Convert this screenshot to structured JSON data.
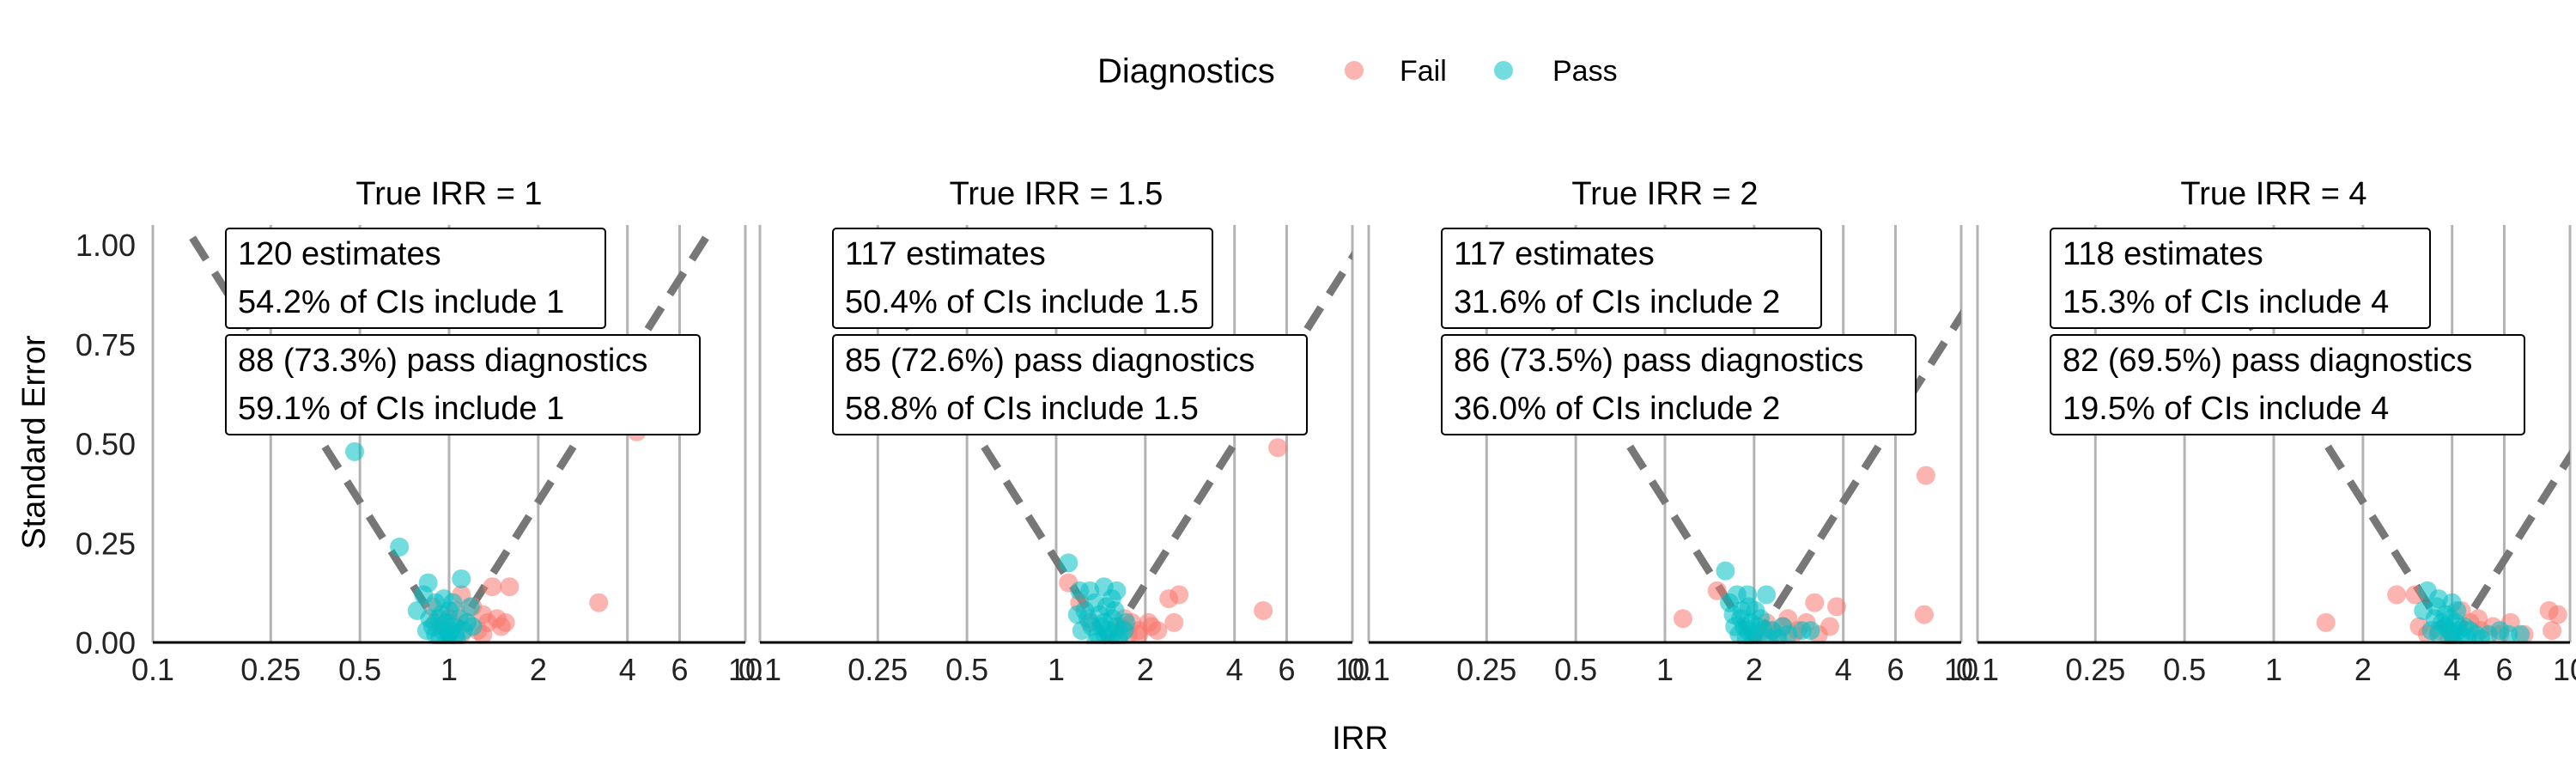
{
  "legend": {
    "title": "Diagnostics",
    "items": [
      {
        "label": "Fail",
        "color": "#F8766D"
      },
      {
        "label": "Pass",
        "color": "#00BFC4"
      }
    ]
  },
  "chart_data": {
    "type": "scatter",
    "x_scale": "log",
    "xlabel": "IRR",
    "ylabel": "Standard Error",
    "xlim": [
      0.1,
      10
    ],
    "ylim": [
      0,
      1.05
    ],
    "x_ticks": [
      0.1,
      0.25,
      0.5,
      1,
      2,
      4,
      6,
      10
    ],
    "x_tick_labels": [
      "0.1",
      "0.25",
      "0.5",
      "1",
      "2",
      "4",
      "6",
      "10"
    ],
    "y_ticks": [
      0,
      0.25,
      0.5,
      0.75,
      1
    ],
    "y_tick_labels": [
      "0.00",
      "0.25",
      "0.50",
      "0.75",
      "1.00"
    ],
    "grid": "vertical lines at x ticks",
    "legend_position": "top",
    "panels": [
      {
        "title": "True IRR = 1",
        "true_irr": 1,
        "annotation_all": [
          "120 estimates",
          "54.2% of CIs include 1"
        ],
        "annotation_pass": [
          "88 (73.3%) pass diagnostics",
          "59.1% of CIs include 1"
        ],
        "fail_points": [
          [
            4.3,
            0.53
          ],
          [
            3.2,
            0.1
          ],
          [
            1.6,
            0.14
          ],
          [
            1.4,
            0.14
          ],
          [
            1.3,
            0.07
          ],
          [
            1.2,
            0.09
          ],
          [
            1.1,
            0.12
          ],
          [
            1.5,
            0.04
          ],
          [
            1.35,
            0.05
          ],
          [
            1.25,
            0.03
          ],
          [
            1.15,
            0.05
          ],
          [
            1.05,
            0.08
          ],
          [
            1.0,
            0.06
          ],
          [
            0.95,
            0.04
          ],
          [
            0.9,
            0.05
          ],
          [
            0.88,
            0.09
          ],
          [
            1.45,
            0.06
          ],
          [
            1.55,
            0.05
          ],
          [
            1.3,
            0.02
          ],
          [
            1.1,
            0.02
          ]
        ],
        "pass_points": [
          [
            0.48,
            0.48
          ],
          [
            0.68,
            0.24
          ],
          [
            0.85,
            0.15
          ],
          [
            1.1,
            0.16
          ],
          [
            0.78,
            0.08
          ],
          [
            0.82,
            0.12
          ],
          [
            0.9,
            0.1
          ],
          [
            0.92,
            0.06
          ],
          [
            0.95,
            0.03
          ],
          [
            0.98,
            0.05
          ],
          [
            1.0,
            0.08
          ],
          [
            1.02,
            0.04
          ],
          [
            1.05,
            0.02
          ],
          [
            1.08,
            0.06
          ],
          [
            1.12,
            0.03
          ],
          [
            0.88,
            0.04
          ],
          [
            0.93,
            0.01
          ],
          [
            1.0,
            0.02
          ],
          [
            1.03,
            0.1
          ],
          [
            0.96,
            0.11
          ],
          [
            0.86,
            0.06
          ],
          [
            1.15,
            0.05
          ],
          [
            1.2,
            0.04
          ],
          [
            0.9,
            0.02
          ],
          [
            1.06,
            0.01
          ],
          [
            0.98,
            0.0
          ],
          [
            1.01,
            0.03
          ],
          [
            0.94,
            0.07
          ],
          [
            1.18,
            0.09
          ],
          [
            0.84,
            0.03
          ]
        ]
      },
      {
        "title": "True IRR = 1.5",
        "true_irr": 1.5,
        "annotation_all": [
          "117 estimates",
          "50.4% of CIs include 1.5"
        ],
        "annotation_pass": [
          "85 (72.6%) pass diagnostics",
          "58.8% of CIs include 1.5"
        ],
        "fail_points": [
          [
            5.6,
            0.49
          ],
          [
            5.0,
            0.08
          ],
          [
            2.6,
            0.12
          ],
          [
            2.4,
            0.11
          ],
          [
            2.5,
            0.05
          ],
          [
            2.1,
            0.04
          ],
          [
            1.9,
            0.03
          ],
          [
            1.8,
            0.05
          ],
          [
            1.7,
            0.06
          ],
          [
            1.65,
            0.04
          ],
          [
            1.9,
            0.02
          ],
          [
            2.2,
            0.03
          ],
          [
            1.1,
            0.15
          ],
          [
            1.2,
            0.1
          ],
          [
            1.3,
            0.05
          ],
          [
            1.55,
            0.02
          ],
          [
            1.75,
            0.02
          ],
          [
            2.05,
            0.05
          ]
        ],
        "pass_points": [
          [
            1.1,
            0.2
          ],
          [
            1.2,
            0.13
          ],
          [
            1.3,
            0.13
          ],
          [
            1.45,
            0.14
          ],
          [
            1.6,
            0.13
          ],
          [
            1.25,
            0.08
          ],
          [
            1.35,
            0.1
          ],
          [
            1.4,
            0.07
          ],
          [
            1.45,
            0.05
          ],
          [
            1.5,
            0.03
          ],
          [
            1.55,
            0.06
          ],
          [
            1.6,
            0.04
          ],
          [
            1.65,
            0.02
          ],
          [
            1.7,
            0.03
          ],
          [
            1.38,
            0.02
          ],
          [
            1.42,
            0.04
          ],
          [
            1.52,
            0.01
          ],
          [
            1.32,
            0.04
          ],
          [
            1.28,
            0.06
          ],
          [
            1.48,
            0.09
          ],
          [
            1.58,
            0.08
          ],
          [
            1.22,
            0.03
          ],
          [
            1.62,
            0.01
          ],
          [
            1.36,
            0.0
          ],
          [
            1.46,
            0.02
          ],
          [
            1.18,
            0.07
          ],
          [
            1.72,
            0.05
          ],
          [
            1.54,
            0.11
          ]
        ]
      },
      {
        "title": "True IRR = 2",
        "true_irr": 2,
        "annotation_all": [
          "117 estimates",
          "31.6% of CIs include 2"
        ],
        "annotation_pass": [
          "86 (73.5%) pass diagnostics",
          "36.0% of CIs include 2"
        ],
        "fail_points": [
          [
            7.6,
            0.42
          ],
          [
            7.5,
            0.07
          ],
          [
            3.8,
            0.09
          ],
          [
            3.6,
            0.04
          ],
          [
            3.2,
            0.1
          ],
          [
            3.0,
            0.05
          ],
          [
            2.8,
            0.03
          ],
          [
            2.6,
            0.06
          ],
          [
            2.5,
            0.04
          ],
          [
            2.4,
            0.02
          ],
          [
            2.3,
            0.03
          ],
          [
            2.2,
            0.05
          ],
          [
            1.5,
            0.13
          ],
          [
            1.15,
            0.06
          ],
          [
            2.1,
            0.02
          ],
          [
            2.7,
            0.02
          ],
          [
            3.3,
            0.02
          ]
        ],
        "pass_points": [
          [
            1.6,
            0.18
          ],
          [
            1.75,
            0.12
          ],
          [
            1.9,
            0.12
          ],
          [
            2.2,
            0.12
          ],
          [
            1.65,
            0.1
          ],
          [
            1.7,
            0.07
          ],
          [
            1.8,
            0.06
          ],
          [
            1.85,
            0.04
          ],
          [
            1.9,
            0.03
          ],
          [
            1.95,
            0.05
          ],
          [
            2.0,
            0.02
          ],
          [
            2.05,
            0.04
          ],
          [
            2.1,
            0.06
          ],
          [
            2.15,
            0.03
          ],
          [
            1.78,
            0.02
          ],
          [
            1.88,
            0.01
          ],
          [
            1.98,
            0.0
          ],
          [
            2.3,
            0.03
          ],
          [
            2.5,
            0.04
          ],
          [
            2.6,
            0.02
          ],
          [
            2.9,
            0.03
          ],
          [
            3.1,
            0.03
          ],
          [
            1.72,
            0.04
          ],
          [
            2.02,
            0.08
          ],
          [
            1.92,
            0.09
          ],
          [
            1.82,
            0.08
          ],
          [
            2.25,
            0.01
          ],
          [
            2.4,
            0.01
          ]
        ]
      },
      {
        "title": "True IRR = 4",
        "true_irr": 4,
        "annotation_all": [
          "118 estimates",
          "15.3% of CIs include 4"
        ],
        "annotation_pass": [
          "82 (69.5%) pass diagnostics",
          "19.5% of CIs include 4"
        ],
        "fail_points": [
          [
            1.5,
            0.05
          ],
          [
            2.6,
            0.12
          ],
          [
            3.0,
            0.12
          ],
          [
            8.5,
            0.08
          ],
          [
            9.1,
            0.07
          ],
          [
            8.7,
            0.03
          ],
          [
            6.3,
            0.05
          ],
          [
            5.5,
            0.04
          ],
          [
            5.0,
            0.03
          ],
          [
            4.6,
            0.05
          ],
          [
            4.3,
            0.08
          ],
          [
            3.6,
            0.03
          ],
          [
            3.3,
            0.02
          ],
          [
            3.1,
            0.04
          ],
          [
            3.9,
            0.01
          ],
          [
            7.0,
            0.02
          ],
          [
            4.9,
            0.06
          ],
          [
            5.8,
            0.02
          ]
        ],
        "pass_points": [
          [
            3.3,
            0.13
          ],
          [
            3.6,
            0.11
          ],
          [
            4.0,
            0.1
          ],
          [
            3.2,
            0.08
          ],
          [
            3.5,
            0.06
          ],
          [
            3.7,
            0.05
          ],
          [
            3.8,
            0.04
          ],
          [
            3.9,
            0.03
          ],
          [
            4.0,
            0.02
          ],
          [
            4.1,
            0.05
          ],
          [
            4.2,
            0.03
          ],
          [
            4.3,
            0.02
          ],
          [
            4.4,
            0.04
          ],
          [
            4.6,
            0.03
          ],
          [
            4.8,
            0.02
          ],
          [
            5.0,
            0.01
          ],
          [
            5.3,
            0.02
          ],
          [
            5.8,
            0.03
          ],
          [
            6.2,
            0.02
          ],
          [
            6.8,
            0.02
          ],
          [
            3.4,
            0.03
          ],
          [
            3.6,
            0.02
          ],
          [
            3.8,
            0.07
          ],
          [
            4.05,
            0.0
          ],
          [
            4.5,
            0.01
          ],
          [
            3.55,
            0.09
          ],
          [
            4.15,
            0.08
          ],
          [
            3.95,
            0.06
          ]
        ]
      }
    ]
  }
}
